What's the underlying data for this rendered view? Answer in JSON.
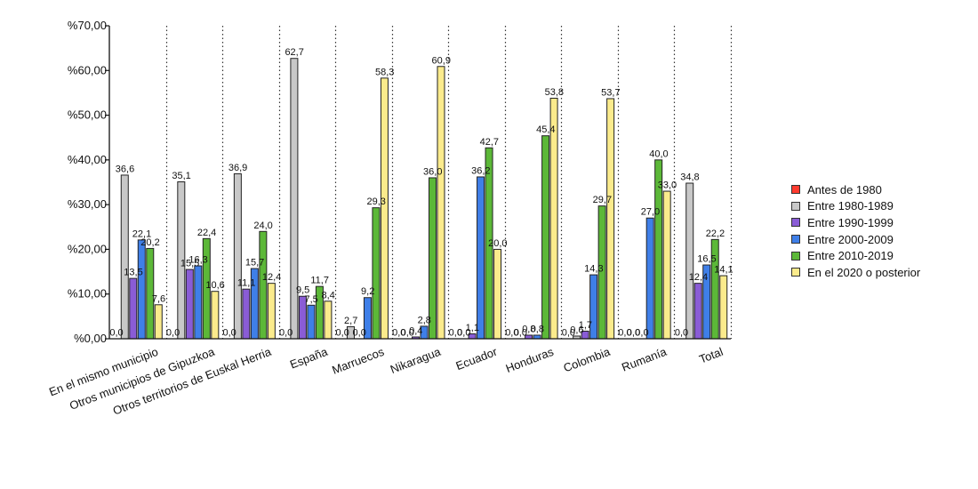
{
  "chart_data": {
    "type": "bar",
    "title": "",
    "xlabel": "",
    "ylabel": "",
    "ylim": [
      0,
      70
    ],
    "yticks": [
      "%0,00",
      "%10,00",
      "%20,00",
      "%30,00",
      "%40,00",
      "%50,00",
      "%60,00",
      "%70,00"
    ],
    "grid": "vertical dotted separators between categories",
    "legend_position": "right",
    "categories": [
      "En el mismo municipio",
      "Otros municipios de Gipuzkoa",
      "Otros territorios de Euskal Herria",
      "España",
      "Marruecos",
      "Nikaragua",
      "Ecuador",
      "Honduras",
      "Colombia",
      "Rumanía",
      "Total"
    ],
    "series": [
      {
        "name": "Antes de 1980",
        "color": "#ff3b2f",
        "values": [
          0.0,
          0.0,
          0.0,
          0.0,
          0.0,
          0.0,
          0.0,
          0.0,
          0.0,
          0.0,
          0.0
        ],
        "labels": [
          "0,0",
          "0,0",
          "0,0",
          "0,0",
          "0,0",
          "0,0",
          "0,0",
          "0,0",
          "0,0",
          "0,0",
          "0,0"
        ]
      },
      {
        "name": "Entre 1980-1989",
        "color": "#c8c8c8",
        "values": [
          36.6,
          35.1,
          36.9,
          62.7,
          2.7,
          0.0,
          0.0,
          0.0,
          0.6,
          0.0,
          34.8
        ],
        "labels": [
          "36,6",
          "35,1",
          "36,9",
          "62,7",
          "2,7",
          "0,0",
          "0,0",
          "0,0",
          "0,6",
          "0,0",
          "34,8"
        ]
      },
      {
        "name": "Entre 1990-1999",
        "color": "#8a5cd6",
        "values": [
          13.5,
          15.5,
          11.1,
          9.5,
          0.0,
          0.4,
          1.1,
          0.8,
          1.7,
          0.0,
          12.4
        ],
        "labels": [
          "13,5",
          "15,5",
          "11,1",
          "9,5",
          "0,0",
          "0,4",
          "1,1",
          "0,8",
          "1,7",
          "0,0",
          "12,4"
        ]
      },
      {
        "name": "Entre 2000-2009",
        "color": "#3f7fe8",
        "values": [
          22.1,
          16.3,
          15.7,
          7.5,
          9.2,
          2.8,
          36.2,
          0.8,
          14.3,
          27.0,
          16.5
        ],
        "labels": [
          "22,1",
          "16,3",
          "15,7",
          "7,5",
          "9,2",
          "2,8",
          "36,2",
          "0,8",
          "14,3",
          "27,0",
          "16,5"
        ]
      },
      {
        "name": "Entre 2010-2019",
        "color": "#5cb838",
        "values": [
          20.2,
          22.4,
          24.0,
          11.7,
          29.3,
          36.0,
          42.7,
          45.4,
          29.7,
          40.0,
          22.2
        ],
        "labels": [
          "20,2",
          "22,4",
          "24,0",
          "11,7",
          "29,3",
          "36,0",
          "42,7",
          "45,4",
          "29,7",
          "40,0",
          "22,2"
        ]
      },
      {
        "name": "En el 2020 o posterior",
        "color": "#fbeb8c",
        "values": [
          7.6,
          10.6,
          12.4,
          8.4,
          58.3,
          60.9,
          20.0,
          53.8,
          53.7,
          33.0,
          14.1
        ],
        "labels": [
          "7,6",
          "10,6",
          "12,4",
          "8,4",
          "58,3",
          "60,9",
          "20,0",
          "53,8",
          "53,7",
          "33,0",
          "14,1"
        ]
      }
    ]
  }
}
